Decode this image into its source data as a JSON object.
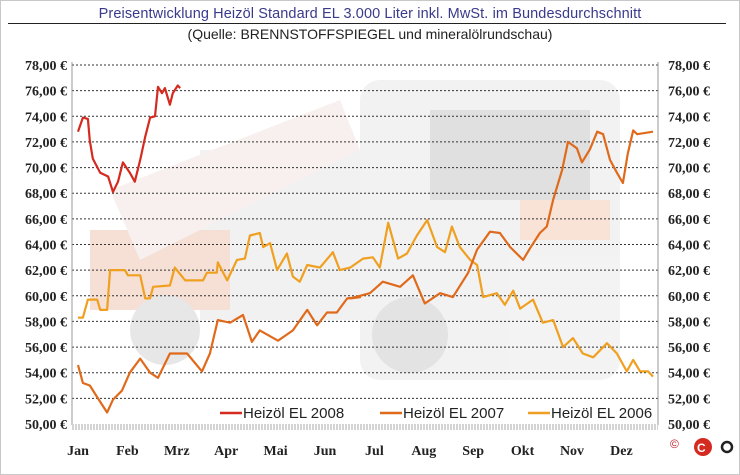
{
  "chart_data": {
    "type": "line",
    "title": "Preisentwicklung Heizöl Standard EL 3.000 Liter inkl. MwSt. im Bundesdurchschnitt",
    "subtitle": "(Quelle: BRENNSTOFFSPIEGEL und mineralölrundschau)",
    "xlabel": "",
    "ylabel": "",
    "x_unit": "month index (0 = start of Jan)",
    "xlim": [
      0,
      11.75
    ],
    "ylim": [
      50,
      78
    ],
    "grid": true,
    "legend_position": "bottom-right",
    "categories": [
      "Jan",
      "Feb",
      "Mrz",
      "Apr",
      "Mai",
      "Jun",
      "Jul",
      "Aug",
      "Sep",
      "Okt",
      "Nov",
      "Dez"
    ],
    "yticks": [
      "50,00 €",
      "52,00 €",
      "54,00 €",
      "56,00 €",
      "58,00 €",
      "60,00 €",
      "62,00 €",
      "64,00 €",
      "66,00 €",
      "68,00 €",
      "70,00 €",
      "72,00 €",
      "74,00 €",
      "76,00 €",
      "78,00 €"
    ],
    "ytick_values": [
      50,
      52,
      54,
      56,
      58,
      60,
      62,
      64,
      66,
      68,
      70,
      72,
      74,
      76,
      78
    ],
    "copyright": "©",
    "logo_text": "CEO",
    "series": [
      {
        "name": "Heizöl EL 2008",
        "color": "#d42a20",
        "x": [
          0.04,
          0.14,
          0.24,
          0.28,
          0.34,
          0.49,
          0.65,
          0.75,
          0.85,
          0.95,
          1.09,
          1.19,
          1.3,
          1.4,
          1.5,
          1.6,
          1.66,
          1.74,
          1.8,
          1.9,
          1.96,
          2.06,
          2.11
        ],
        "y": [
          72.8,
          73.9,
          73.8,
          72.1,
          70.7,
          69.6,
          69.3,
          68.1,
          68.9,
          70.4,
          69.6,
          68.9,
          70.6,
          72.4,
          73.9,
          74.0,
          76.3,
          75.8,
          76.2,
          74.9,
          75.8,
          76.4,
          76.2
        ]
      },
      {
        "name": "Heizöl EL 2007",
        "color": "#e06a1c",
        "x": [
          0.04,
          0.14,
          0.28,
          0.43,
          0.63,
          0.75,
          0.93,
          1.09,
          1.3,
          1.5,
          1.66,
          1.9,
          2.11,
          2.25,
          2.55,
          2.71,
          2.87,
          3.12,
          3.38,
          3.56,
          3.72,
          4.09,
          4.39,
          4.68,
          4.88,
          5.08,
          5.28,
          5.49,
          5.75,
          5.55,
          5.95,
          6.21,
          6.56,
          6.82,
          7.06,
          7.37,
          7.63,
          7.94,
          8.12,
          8.38,
          8.58,
          8.79,
          9.05,
          9.19,
          9.39,
          9.53,
          9.66,
          9.84,
          9.96,
          10.14,
          10.24,
          10.4,
          10.55,
          10.67,
          10.81,
          10.95,
          11.07,
          11.17,
          11.28,
          11.36,
          11.68
        ],
        "y": [
          54.6,
          53.2,
          53.0,
          52.1,
          50.9,
          51.9,
          52.6,
          54.0,
          55.1,
          54.0,
          53.6,
          55.5,
          55.5,
          55.5,
          54.1,
          55.5,
          58.1,
          57.9,
          58.5,
          56.4,
          57.3,
          56.5,
          57.3,
          58.9,
          57.7,
          58.7,
          58.7,
          59.8,
          59.9,
          59.8,
          60.2,
          61.1,
          60.7,
          61.6,
          59.4,
          60.2,
          59.9,
          61.8,
          63.6,
          65.0,
          64.9,
          63.8,
          62.8,
          63.7,
          64.9,
          65.4,
          67.5,
          69.8,
          72.0,
          71.5,
          70.4,
          71.4,
          72.8,
          72.6,
          70.6,
          69.6,
          68.8,
          71.1,
          72.9,
          72.6,
          72.8
        ]
      },
      {
        "name": "Heizöl EL 2006",
        "color": "#f0a020",
        "x": [
          0.04,
          0.14,
          0.24,
          0.43,
          0.49,
          0.63,
          0.69,
          0.99,
          1.05,
          1.3,
          1.4,
          1.5,
          1.56,
          1.9,
          2.0,
          2.21,
          2.57,
          2.65,
          2.85,
          2.87,
          3.06,
          3.26,
          3.42,
          3.52,
          3.72,
          3.79,
          3.93,
          4.07,
          4.27,
          4.39,
          4.53,
          4.68,
          4.94,
          5.2,
          5.34,
          5.55,
          5.81,
          6.01,
          6.15,
          6.32,
          6.52,
          6.7,
          6.9,
          7.11,
          7.31,
          7.47,
          7.61,
          7.77,
          7.98,
          8.12,
          8.24,
          8.52,
          8.68,
          8.85,
          8.99,
          9.25,
          9.45,
          9.66,
          9.86,
          10.06,
          10.26,
          10.47,
          10.75,
          10.95,
          11.15,
          11.28,
          11.42,
          11.58,
          11.68
        ],
        "y": [
          58.3,
          58.3,
          59.7,
          59.7,
          58.9,
          58.9,
          62.0,
          62.0,
          61.6,
          61.6,
          59.8,
          59.8,
          60.7,
          60.8,
          62.2,
          61.2,
          61.2,
          61.8,
          61.8,
          62.6,
          61.2,
          62.8,
          62.9,
          64.7,
          64.9,
          63.8,
          64.1,
          62.0,
          63.3,
          61.5,
          61.1,
          62.4,
          62.2,
          63.4,
          62.0,
          62.2,
          62.9,
          63.0,
          62.2,
          65.7,
          62.9,
          63.3,
          64.7,
          65.9,
          63.8,
          63.4,
          65.4,
          63.8,
          62.8,
          62.4,
          59.9,
          60.2,
          59.3,
          60.4,
          59.0,
          59.7,
          57.9,
          58.1,
          56.0,
          56.7,
          55.5,
          55.2,
          56.3,
          55.5,
          54.1,
          55.0,
          54.1,
          54.1,
          53.7
        ]
      }
    ]
  }
}
